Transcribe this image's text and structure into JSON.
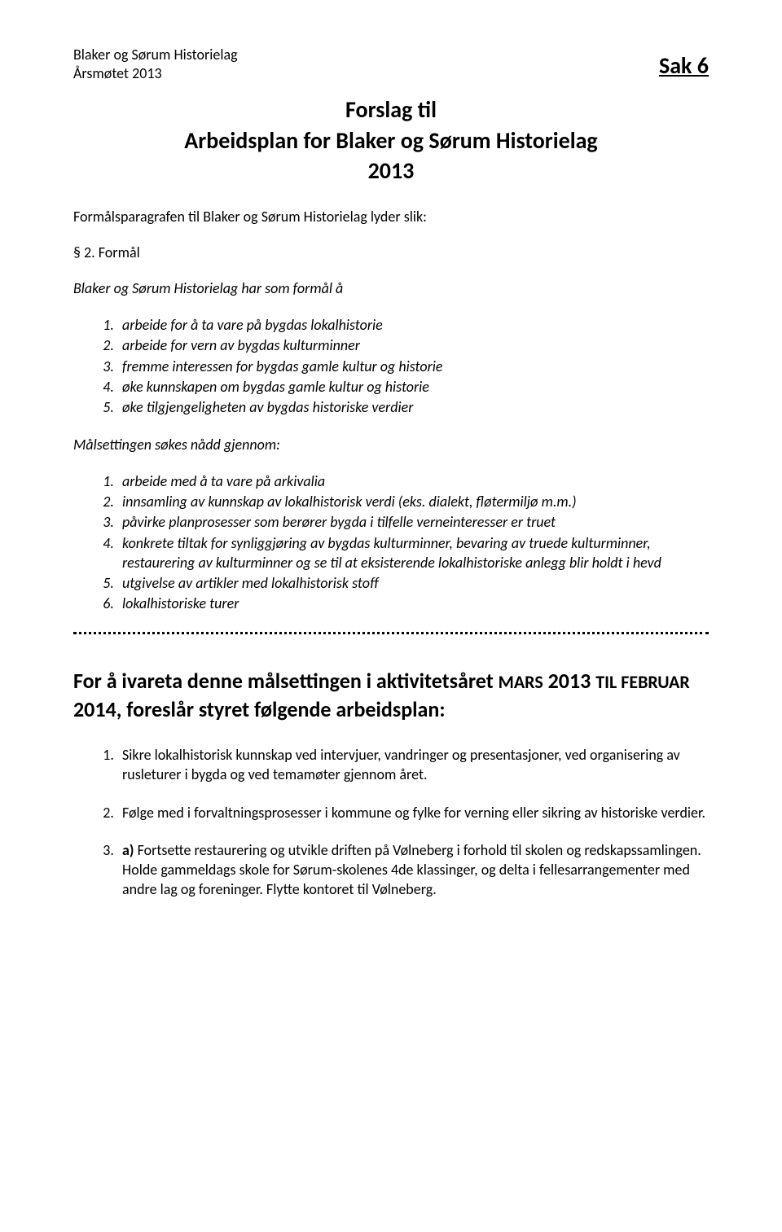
{
  "header": {
    "org": "Blaker og Sørum Historielag",
    "meeting": "Årsmøtet 2013"
  },
  "sak": "Sak 6",
  "title": {
    "line1": "Forslag til",
    "line2": "Arbeidsplan for Blaker og Sørum Historielag",
    "line3": "2013"
  },
  "lead": "Formålsparagrafen til Blaker og Sørum Historielag lyder slik:",
  "section_label": "§ 2. Formål",
  "intro_italic": "Blaker og Sørum Historielag har som formål å",
  "purpose_list": [
    "arbeide for å ta vare på bygdas lokalhistorie",
    "arbeide for vern av bygdas kulturminner",
    "fremme interessen for bygdas gamle kultur og historie",
    "øke kunnskapen om bygdas gamle kultur og historie",
    "øke tilgjengeligheten av bygdas historiske verdier"
  ],
  "goal_preamble": "Målsettingen søkes nådd gjennom:",
  "goal_list": [
    "arbeide med å ta vare på arkivalia",
    "innsamling av kunnskap av lokalhistorisk verdi (eks. dialekt, fløtermiljø m.m.)",
    "påvirke planprosesser som berører bygda i tilfelle verneinteresser er truet",
    "konkrete tiltak for synliggjøring av bygdas kulturminner, bevaring av truede kulturminner, restaurering av kulturminner og se til at eksisterende lokalhistoriske anlegg blir holdt i hevd",
    "utgivelse av artikler med lokalhistorisk stoff",
    "lokalhistoriske turer"
  ],
  "big_heading": {
    "part1": "For å ivareta denne målsettingen i aktivitetsåret ",
    "smallcaps1": "MARS",
    "part2": " 2013 ",
    "smallcaps2": "TIL FEBRUAR",
    "part3": " 2014, foreslår styret følgende arbeidsplan:"
  },
  "action_list": [
    "Sikre lokalhistorisk kunnskap ved intervjuer, vandringer og presentasjoner, ved organisering av rusleturer i bygda og ved temamøter gjennom året.",
    "Følge med i forvaltningsprosesser i kommune og fylke for verning eller sikring av historiske verdier.",
    "a) Fortsette restaurering og utvikle driften på Vølneberg i forhold til skolen og redskapssamlingen. Holde gammeldags skole for Sørum-skolenes 4de klassinger, og delta i fellesarrangementer med andre lag og foreninger. Flytte kontoret til Vølneberg."
  ]
}
